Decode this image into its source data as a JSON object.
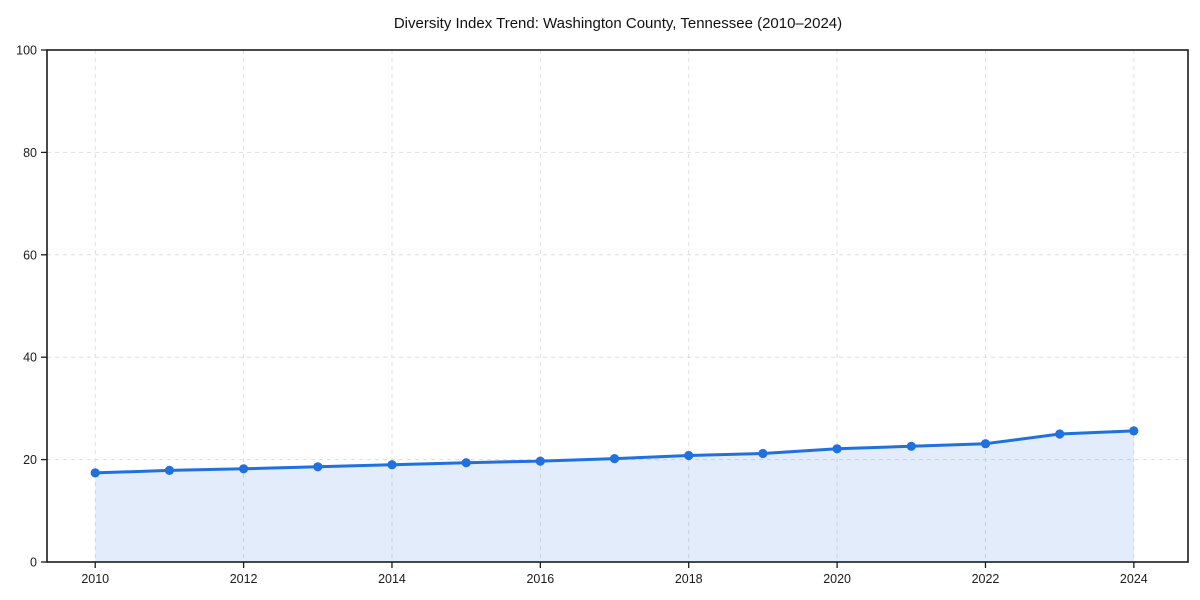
{
  "page": {
    "background": "#ffffff"
  },
  "chart_data": {
    "type": "area",
    "title": "Diversity Index Trend: Washington County, Tennessee (2010–2024)",
    "x": [
      2010,
      2011,
      2012,
      2013,
      2014,
      2015,
      2016,
      2017,
      2018,
      2019,
      2020,
      2021,
      2022,
      2023,
      2024
    ],
    "series": [
      {
        "name": "Diversity Index",
        "values": [
          17.4,
          17.9,
          18.2,
          18.6,
          19.0,
          19.4,
          19.7,
          20.2,
          20.8,
          21.2,
          22.1,
          22.6,
          23.1,
          25.0,
          25.6
        ]
      }
    ],
    "xlabel": "",
    "ylabel": "",
    "xlim": [
      2009.35,
      2024.73
    ],
    "ylim": [
      0,
      100
    ],
    "xticks": [
      2010,
      2012,
      2014,
      2016,
      2018,
      2020,
      2022,
      2024
    ],
    "yticks": [
      0,
      20,
      40,
      60,
      80,
      100
    ],
    "grid": {
      "style": "dashed",
      "color": "#dedede",
      "horizontal": true,
      "vertical": true
    },
    "legend": "none",
    "marker": "circle",
    "colors": {
      "line": "#2170e0",
      "marker": "#2170e0",
      "fill": "rgba(33, 112, 224, 0.13)",
      "spine": "#1c1c1c",
      "tick": "#1c1c1c",
      "tick_label": "#1c1c1c",
      "title": "#111111",
      "background": "#ffffff"
    }
  }
}
